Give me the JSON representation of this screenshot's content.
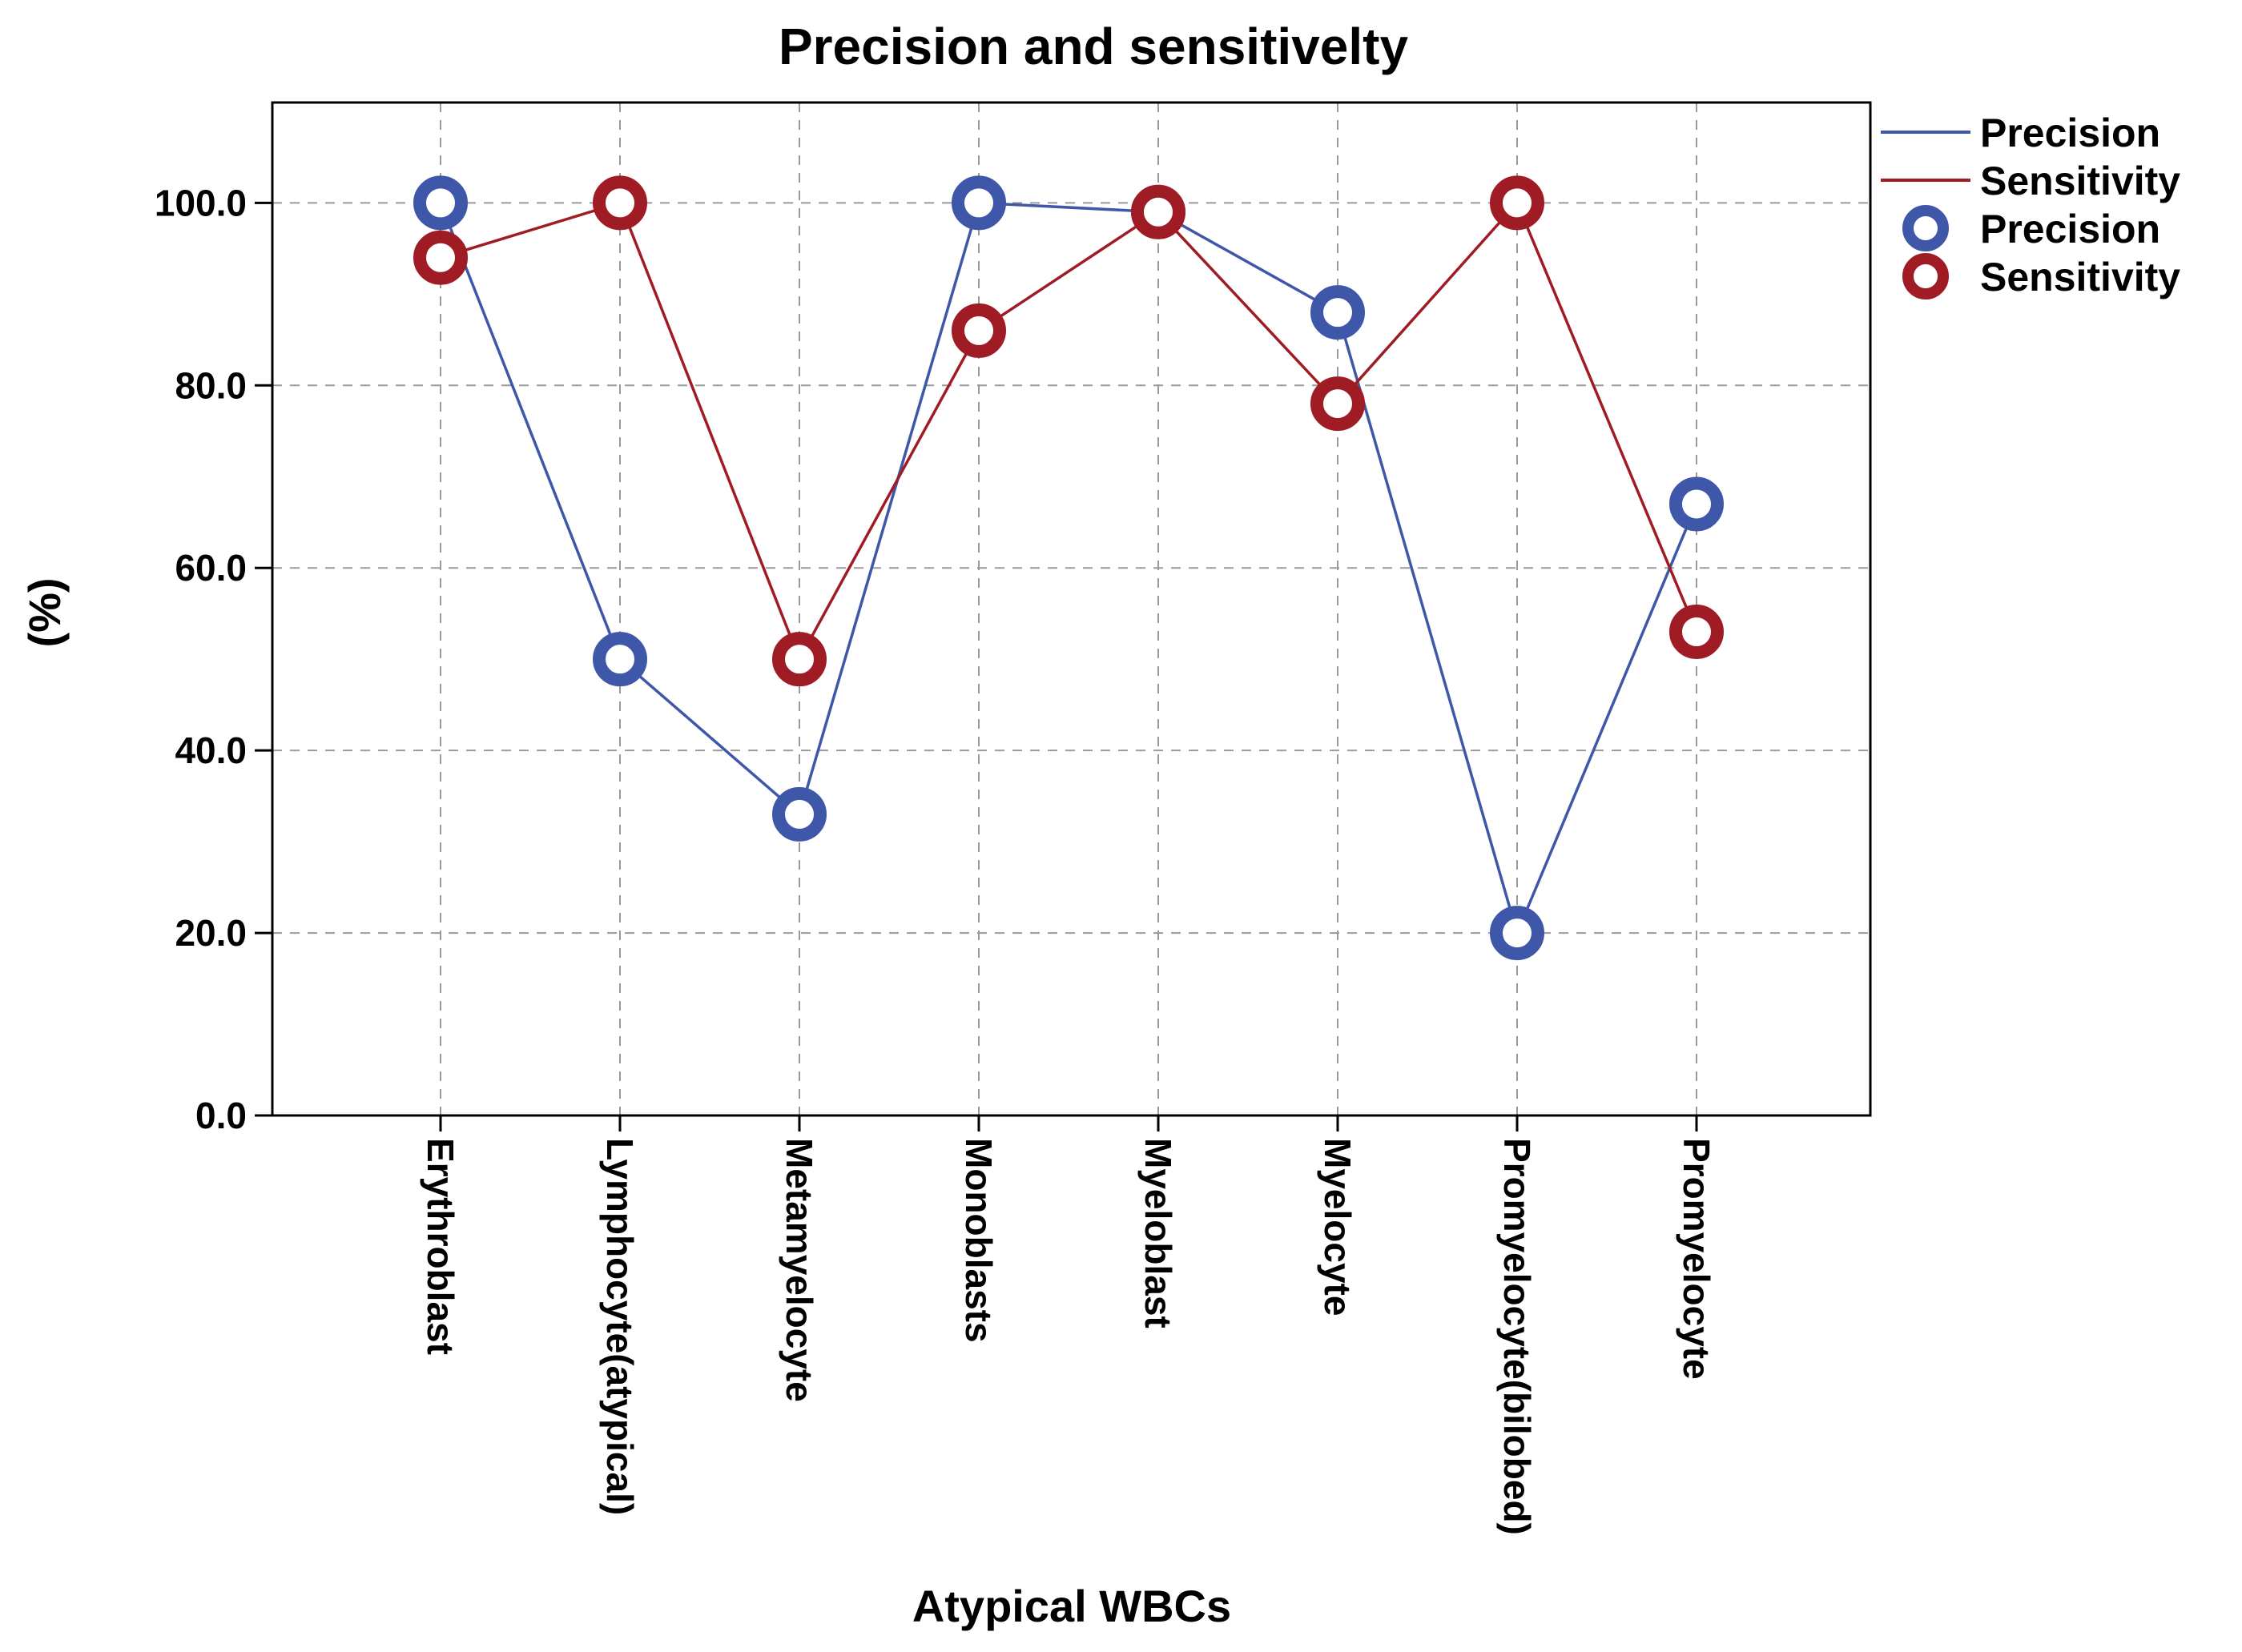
{
  "chart_data": {
    "type": "line",
    "title": "Precision and sensitivelty",
    "xlabel": "Atypical WBCs",
    "ylabel": "(%)",
    "ylim": [
      0,
      111
    ],
    "yticks": [
      0,
      20,
      40,
      60,
      80,
      100
    ],
    "ytick_labels": [
      "0.0",
      "20.0",
      "40.0",
      "60.0",
      "80.0",
      "100.0"
    ],
    "grid": true,
    "legend_position": "top-right outside",
    "categories": [
      "Erythroblast",
      "Lymphocyte(atypical)",
      "Metamyelocyte",
      "Monoblasts",
      "Myeloblast",
      "Myelocyte",
      "Promyelocyte(bilobed)",
      "Promyelocyte"
    ],
    "series": [
      {
        "name": "Precision",
        "color": "#3f57a8",
        "values": [
          100,
          50,
          33,
          100,
          99,
          88,
          20,
          67
        ]
      },
      {
        "name": "Sensitivity",
        "color": "#a01c24",
        "values": [
          94,
          100,
          50,
          86,
          99,
          78,
          100,
          53
        ]
      }
    ],
    "legend": {
      "line_entries": [
        "Precision",
        "Sensitivity"
      ],
      "marker_entries": [
        "Precision",
        "Sensitivity"
      ]
    }
  }
}
